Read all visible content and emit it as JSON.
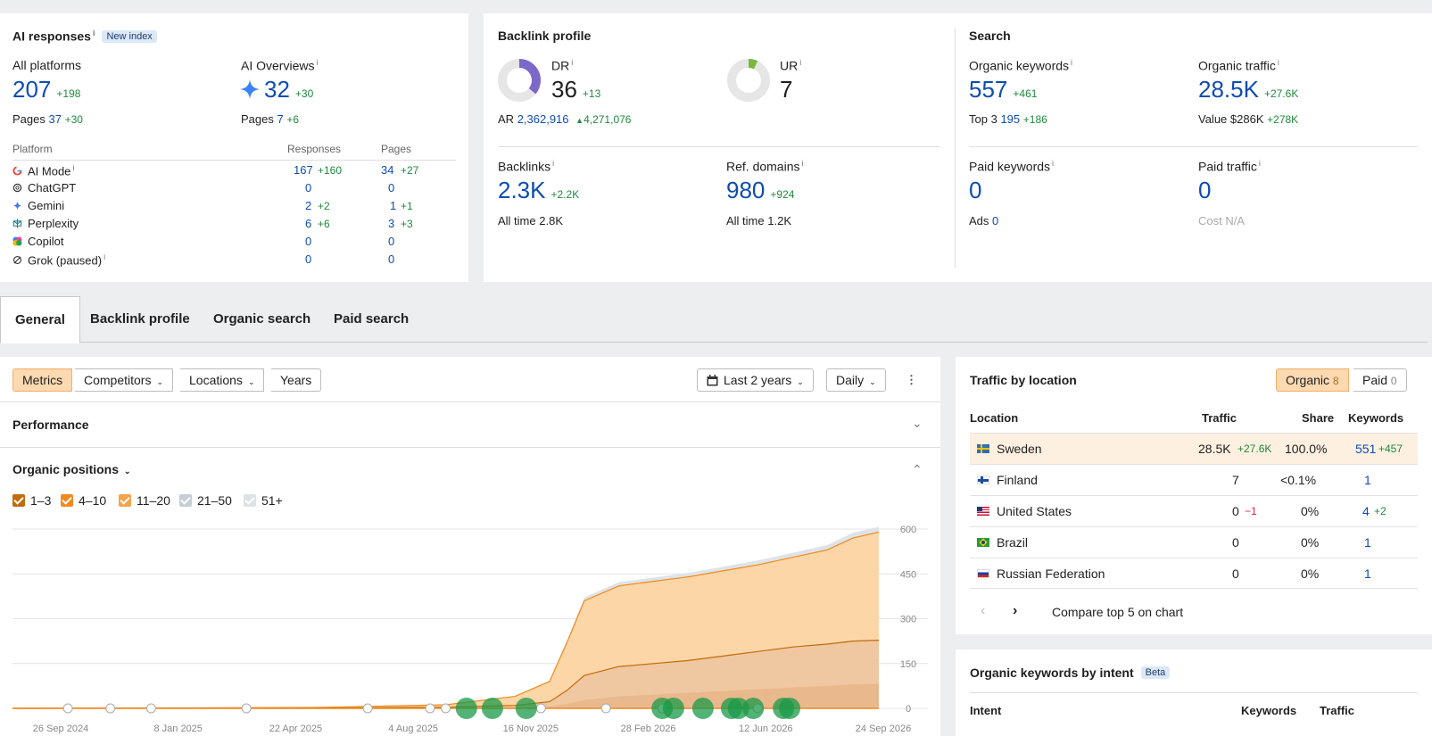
{
  "ai_responses": {
    "title": "AI responses",
    "badge": "New index",
    "all_platforms": {
      "label": "All platforms",
      "value": "207",
      "delta": "+198",
      "pages_label": "Pages",
      "pages": "37",
      "pages_delta": "+30"
    },
    "ai_overviews": {
      "label": "AI Overviews",
      "value": "32",
      "delta": "+30",
      "pages_label": "Pages",
      "pages": "7",
      "pages_delta": "+6"
    },
    "table": {
      "headers": [
        "Platform",
        "Responses",
        "Pages"
      ],
      "rows": [
        {
          "name": "AI Mode",
          "responses": "167",
          "responses_delta": "+160",
          "pages": "34",
          "pages_delta": "+27"
        },
        {
          "name": "ChatGPT",
          "responses": "0",
          "responses_delta": "",
          "pages": "0",
          "pages_delta": ""
        },
        {
          "name": "Gemini",
          "responses": "2",
          "responses_delta": "+2",
          "pages": "1",
          "pages_delta": "+1"
        },
        {
          "name": "Perplexity",
          "responses": "6",
          "responses_delta": "+6",
          "pages": "3",
          "pages_delta": "+3"
        },
        {
          "name": "Copilot",
          "responses": "0",
          "responses_delta": "",
          "pages": "0",
          "pages_delta": ""
        },
        {
          "name": "Grok (paused)",
          "responses": "0",
          "responses_delta": "",
          "pages": "0",
          "pages_delta": ""
        }
      ]
    }
  },
  "backlink_profile": {
    "title": "Backlink profile",
    "dr": {
      "label": "DR",
      "value": "36",
      "delta": "+13",
      "gauge": 36
    },
    "ar": {
      "label": "AR",
      "value": "2,362,916",
      "delta": "4,271,076"
    },
    "ur": {
      "label": "UR",
      "value": "7",
      "gauge": 7
    },
    "backlinks": {
      "label": "Backlinks",
      "value": "2.3K",
      "delta": "+2.2K",
      "alltime_label": "All time",
      "alltime": "2.8K"
    },
    "ref_domains": {
      "label": "Ref. domains",
      "value": "980",
      "delta": "+924",
      "alltime_label": "All time",
      "alltime": "1.2K"
    }
  },
  "search": {
    "title": "Search",
    "organic_keywords": {
      "label": "Organic keywords",
      "value": "557",
      "delta": "+461",
      "sub_label": "Top 3",
      "sub_value": "195",
      "sub_delta": "+186"
    },
    "organic_traffic": {
      "label": "Organic traffic",
      "value": "28.5K",
      "delta": "+27.6K",
      "sub_label": "Value",
      "sub_value": "$286K",
      "sub_delta": "+278K"
    },
    "paid_keywords": {
      "label": "Paid keywords",
      "value": "0",
      "sub_label": "Ads",
      "sub_value": "0"
    },
    "paid_traffic": {
      "label": "Paid traffic",
      "value": "0",
      "sub_label": "Cost",
      "sub_value": "N/A"
    }
  },
  "tabs": [
    "General",
    "Backlink profile",
    "Organic search",
    "Paid search"
  ],
  "toolbar": {
    "metrics": "Metrics",
    "competitors": "Competitors",
    "locations": "Locations",
    "years": "Years",
    "range": "Last 2 years",
    "interval": "Daily"
  },
  "sections": {
    "performance": "Performance",
    "organic_positions": "Organic positions"
  },
  "legend": [
    "1–3",
    "4–10",
    "11–20",
    "21–50",
    "51+"
  ],
  "colors": {
    "accent_orange": "#f5a24a",
    "brand_blue": "#0d4cb3",
    "green": "#1e8a3c"
  },
  "chart_data": {
    "type": "area",
    "series_names": [
      "1–3",
      "4–10",
      "11–20",
      "21–50",
      "51+"
    ],
    "x_labels": [
      "26 Sep 2024",
      "8 Jan 2025",
      "22 Apr 2025",
      "4 Aug 2025",
      "16 Nov 2025",
      "28 Feb 2026",
      "12 Jun 2026",
      "24 Sep 2026"
    ],
    "y_ticks": [
      0,
      150,
      300,
      450,
      600
    ],
    "ylim": [
      0,
      600
    ],
    "x": [
      0,
      0.35,
      0.5,
      0.58,
      0.62,
      0.64,
      0.66,
      0.7,
      0.74,
      0.78,
      0.82,
      0.86,
      0.9,
      0.94,
      0.97,
      1.0
    ],
    "total": [
      0,
      3,
      12,
      40,
      90,
      220,
      360,
      410,
      425,
      440,
      460,
      480,
      505,
      530,
      570,
      590
    ],
    "top10": [
      0,
      1,
      4,
      10,
      22,
      60,
      110,
      140,
      150,
      160,
      175,
      190,
      205,
      215,
      225,
      228
    ],
    "top3": [
      0,
      0,
      1,
      3,
      6,
      15,
      28,
      40,
      46,
      52,
      58,
      64,
      70,
      75,
      80,
      82
    ]
  },
  "traffic_by_location": {
    "title": "Traffic by location",
    "organic_label": "Organic",
    "organic_count": "8",
    "paid_label": "Paid",
    "paid_count": "0",
    "headers": [
      "Location",
      "Traffic",
      "Share",
      "Keywords"
    ],
    "rows": [
      {
        "name": "Sweden",
        "traffic": "28.5K",
        "traffic_delta": "+27.6K",
        "share": "100.0%",
        "keywords": "551",
        "keywords_delta": "+457"
      },
      {
        "name": "Finland",
        "traffic": "7",
        "traffic_delta": "",
        "share": "<0.1%",
        "keywords": "1",
        "keywords_delta": ""
      },
      {
        "name": "United States",
        "traffic": "0",
        "traffic_delta": "−1",
        "share": "0%",
        "keywords": "4",
        "keywords_delta": "+2"
      },
      {
        "name": "Brazil",
        "traffic": "0",
        "traffic_delta": "",
        "share": "0%",
        "keywords": "1",
        "keywords_delta": ""
      },
      {
        "name": "Russian Federation",
        "traffic": "0",
        "traffic_delta": "",
        "share": "0%",
        "keywords": "1",
        "keywords_delta": ""
      }
    ],
    "compare_label": "Compare top 5 on chart"
  },
  "intent": {
    "title": "Organic keywords by intent",
    "badge": "Beta",
    "headers": [
      "Intent",
      "Keywords",
      "Traffic"
    ]
  }
}
